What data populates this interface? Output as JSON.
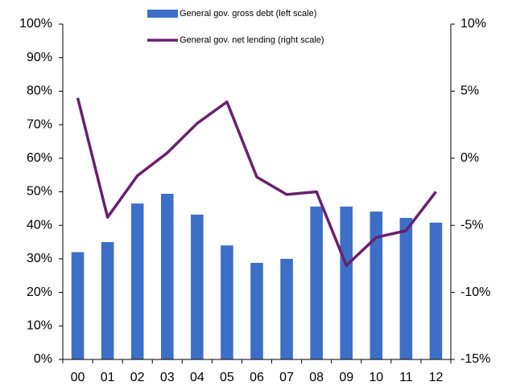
{
  "chart_data": {
    "type": "bar",
    "categories": [
      "00",
      "01",
      "02",
      "03",
      "04",
      "05",
      "06",
      "07",
      "08",
      "09",
      "10",
      "11",
      "12"
    ],
    "series": [
      {
        "name": "General gov. gross debt (left scale)",
        "type": "bar",
        "color": "#3d6fc8",
        "values": [
          32,
          35,
          46.5,
          49.4,
          43.2,
          34,
          28.8,
          30,
          45.6,
          45.6,
          44.1,
          42.2,
          40.8
        ]
      },
      {
        "name": "General gov. net lending (right scale)",
        "type": "line",
        "axis": "y2",
        "color": "#6b1f6e",
        "values": [
          4.5,
          -4.4,
          -1.3,
          0.4,
          2.6,
          4.2,
          -1.4,
          -2.7,
          -2.5,
          -8,
          -5.9,
          -5.4,
          -2.5
        ]
      }
    ],
    "ylim": [
      0,
      100
    ],
    "yticks": [
      {
        "value": 0,
        "label": "0%"
      },
      {
        "value": 10,
        "label": "10%"
      },
      {
        "value": 20,
        "label": "20%"
      },
      {
        "value": 30,
        "label": "30%"
      },
      {
        "value": 40,
        "label": "40%"
      },
      {
        "value": 50,
        "label": "50%"
      },
      {
        "value": 60,
        "label": "60%"
      },
      {
        "value": 70,
        "label": "70%"
      },
      {
        "value": 80,
        "label": "80%"
      },
      {
        "value": 90,
        "label": "90%"
      },
      {
        "value": 100,
        "label": "100%"
      }
    ],
    "y2lim": [
      -15,
      10
    ],
    "y2ticks": [
      {
        "value": -15,
        "label": "-15%"
      },
      {
        "value": -10,
        "label": "-10%"
      },
      {
        "value": -5,
        "label": "-5%"
      },
      {
        "value": 0,
        "label": "0%"
      },
      {
        "value": 5,
        "label": "5%"
      },
      {
        "value": 10,
        "label": "10%"
      }
    ],
    "legend": "top"
  }
}
